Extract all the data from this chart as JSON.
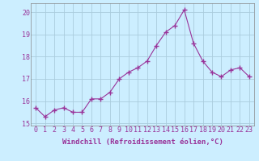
{
  "x": [
    0,
    1,
    2,
    3,
    4,
    5,
    6,
    7,
    8,
    9,
    10,
    11,
    12,
    13,
    14,
    15,
    16,
    17,
    18,
    19,
    20,
    21,
    22,
    23
  ],
  "y": [
    15.7,
    15.3,
    15.6,
    15.7,
    15.5,
    15.5,
    16.1,
    16.1,
    16.4,
    17.0,
    17.3,
    17.5,
    17.8,
    18.5,
    19.1,
    19.4,
    20.1,
    18.6,
    17.8,
    17.3,
    17.1,
    17.4,
    17.5,
    17.1
  ],
  "line_color": "#993399",
  "marker": "+",
  "marker_size": 4,
  "bg_color": "#cceeff",
  "plot_bg_color": "#cceeff",
  "grid_color": "#aaccdd",
  "xlabel": "Windchill (Refroidissement éolien,°C)",
  "xlabel_color": "#993399",
  "tick_label_color": "#993399",
  "axis_label_fontsize": 6.5,
  "tick_fontsize": 6.0,
  "ylim": [
    14.9,
    20.4
  ],
  "xlim": [
    -0.5,
    23.5
  ],
  "yticks": [
    15,
    16,
    17,
    18,
    19,
    20
  ],
  "xticks": [
    0,
    1,
    2,
    3,
    4,
    5,
    6,
    7,
    8,
    9,
    10,
    11,
    12,
    13,
    14,
    15,
    16,
    17,
    18,
    19,
    20,
    21,
    22,
    23
  ]
}
